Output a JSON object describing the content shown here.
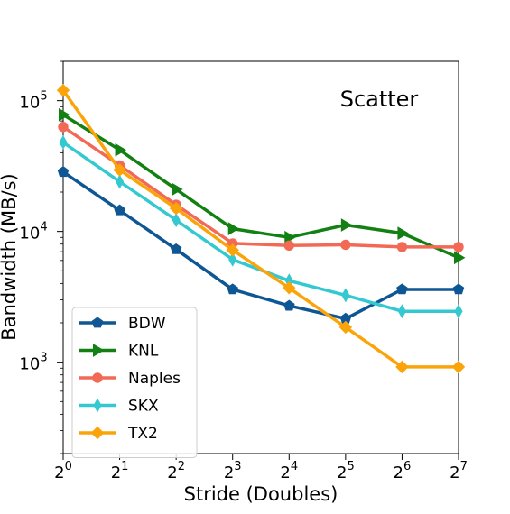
{
  "chart_data": {
    "type": "line",
    "title": "Scatter",
    "xlabel": "Stride (Doubles)",
    "ylabel": "Bandwidth (MB/s)",
    "yscale": "log",
    "xscale": "log2",
    "x": [
      1,
      2,
      4,
      8,
      16,
      32,
      64,
      128
    ],
    "x_tick_labels": [
      {
        "base": "2",
        "exp": "0"
      },
      {
        "base": "2",
        "exp": "1"
      },
      {
        "base": "2",
        "exp": "2"
      },
      {
        "base": "2",
        "exp": "3"
      },
      {
        "base": "2",
        "exp": "4"
      },
      {
        "base": "2",
        "exp": "5"
      },
      {
        "base": "2",
        "exp": "6"
      },
      {
        "base": "2",
        "exp": "7"
      }
    ],
    "y_tick_labels": [
      {
        "value": 1000,
        "base": "10",
        "exp": "3"
      },
      {
        "value": 10000,
        "base": "10",
        "exp": "4"
      },
      {
        "value": 100000,
        "base": "10",
        "exp": "5"
      }
    ],
    "xlim": [
      1,
      128
    ],
    "ylim": [
      200,
      200000
    ],
    "grid": false,
    "legend_position": "bottom-left",
    "series": [
      {
        "name": "BDW",
        "color": "#0f5694",
        "marker": "pentagon",
        "values": [
          28500,
          14500,
          7300,
          3600,
          2700,
          2150,
          3600,
          3600
        ]
      },
      {
        "name": "KNL",
        "color": "#128012",
        "marker": "triangle-right",
        "values": [
          78000,
          42000,
          21000,
          10500,
          9000,
          11200,
          9700,
          6300
        ]
      },
      {
        "name": "Naples",
        "color": "#f26a55",
        "marker": "circle",
        "values": [
          63000,
          32000,
          16000,
          8100,
          7800,
          7900,
          7600,
          7600
        ]
      },
      {
        "name": "SKX",
        "color": "#34c9d1",
        "marker": "thin-diamond",
        "values": [
          48000,
          24000,
          12200,
          6100,
          4200,
          3250,
          2450,
          2450
        ]
      },
      {
        "name": "TX2",
        "color": "#fba40a",
        "marker": "diamond",
        "values": [
          120000,
          29500,
          15000,
          7200,
          3700,
          1850,
          920,
          920
        ]
      }
    ]
  }
}
